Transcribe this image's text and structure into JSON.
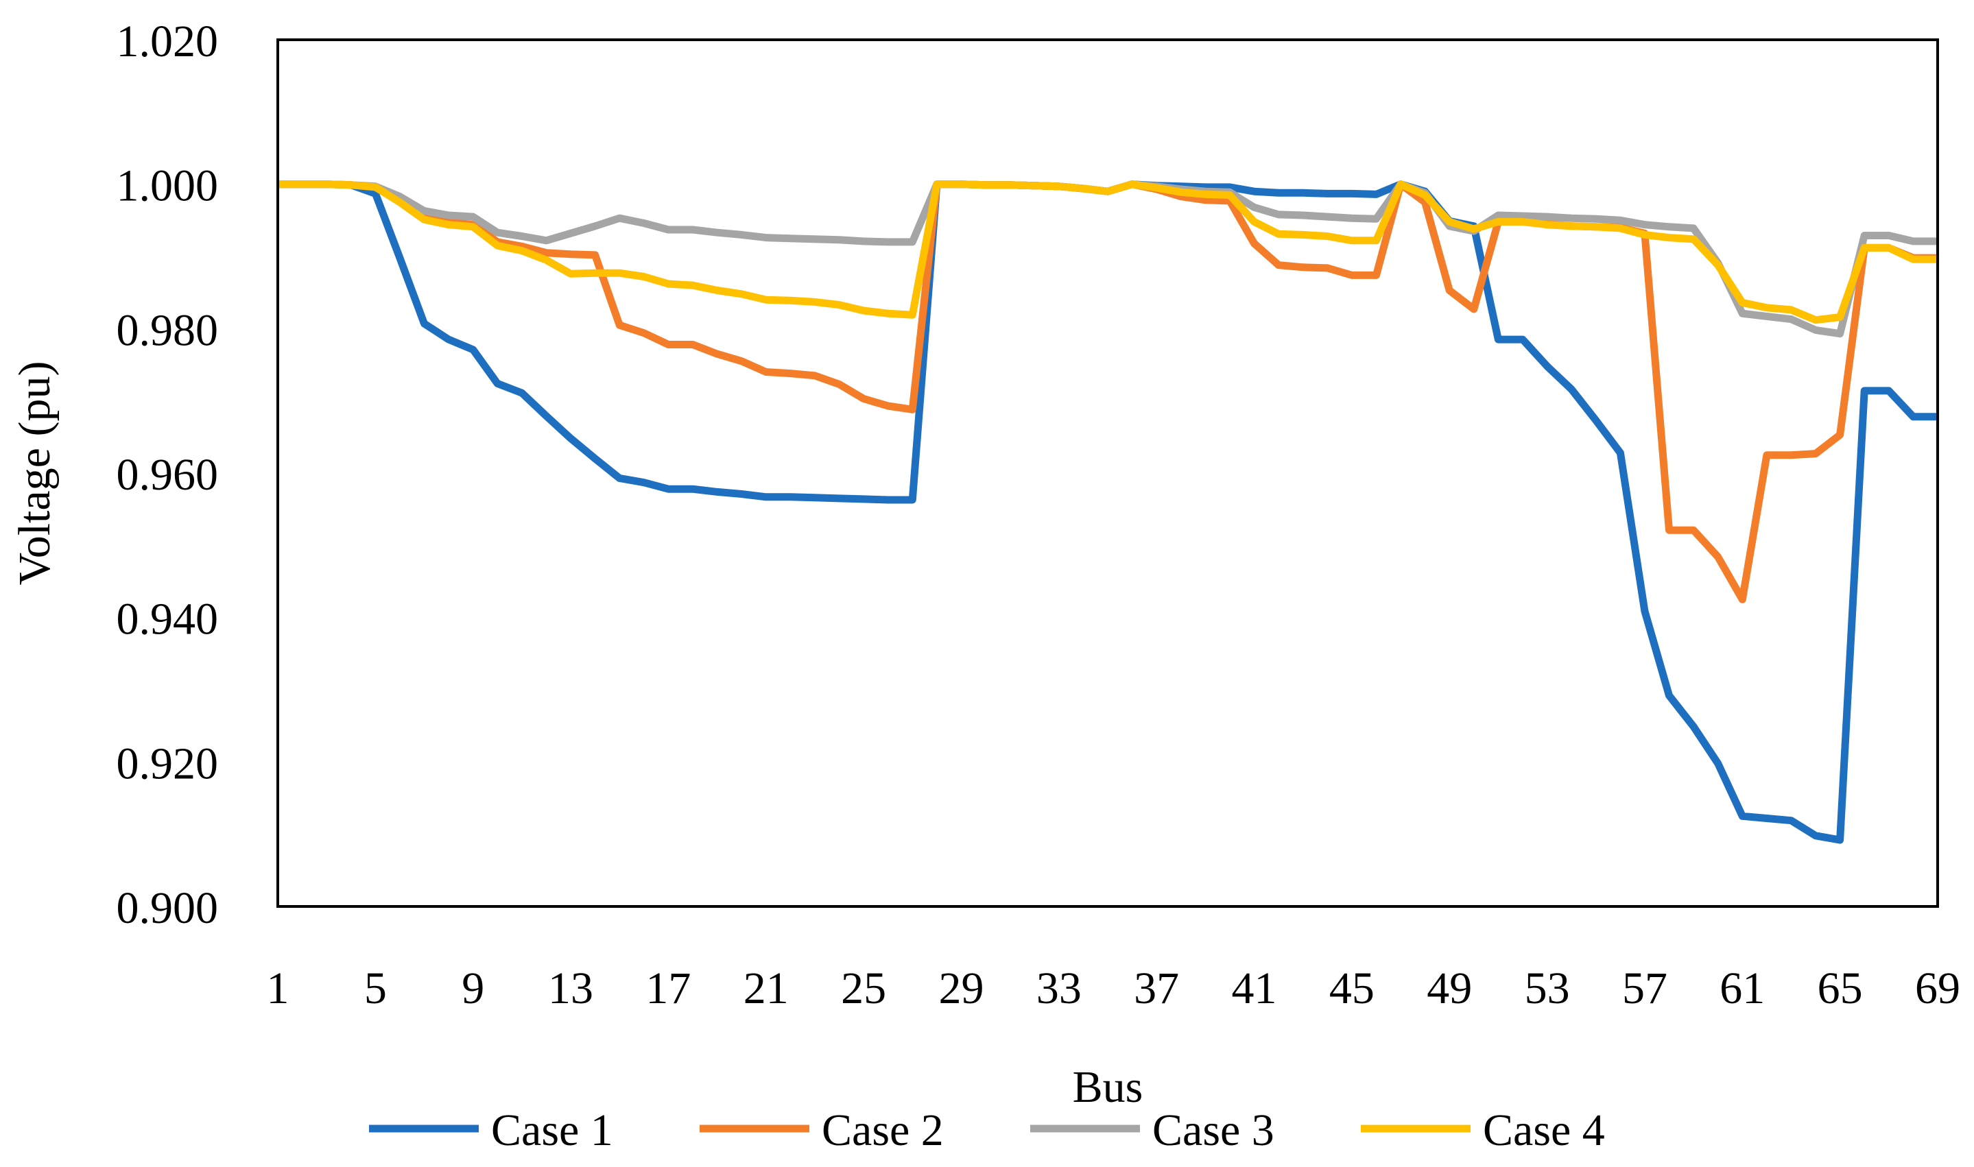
{
  "chart_data": {
    "type": "line",
    "title": "",
    "xlabel": "Bus",
    "ylabel": "Voltage (pu)",
    "x": [
      1,
      2,
      3,
      4,
      5,
      6,
      7,
      8,
      9,
      10,
      11,
      12,
      13,
      14,
      15,
      16,
      17,
      18,
      19,
      20,
      21,
      22,
      23,
      24,
      25,
      26,
      27,
      28,
      29,
      30,
      31,
      32,
      33,
      34,
      35,
      36,
      37,
      38,
      39,
      40,
      41,
      42,
      43,
      44,
      45,
      46,
      47,
      48,
      49,
      50,
      51,
      52,
      53,
      54,
      55,
      56,
      57,
      58,
      59,
      60,
      61,
      62,
      63,
      64,
      65,
      66,
      67,
      68,
      69
    ],
    "xlim": [
      1,
      69
    ],
    "ylim": [
      0.9,
      1.02
    ],
    "x_ticks": [
      "1",
      "5",
      "9",
      "13",
      "17",
      "21",
      "25",
      "29",
      "33",
      "37",
      "41",
      "45",
      "49",
      "53",
      "57",
      "61",
      "65",
      "69"
    ],
    "x_tick_values": [
      1,
      5,
      9,
      13,
      17,
      21,
      25,
      29,
      33,
      37,
      41,
      45,
      49,
      53,
      57,
      61,
      65,
      69
    ],
    "y_ticks": [
      "0.900",
      "0.920",
      "0.940",
      "0.960",
      "0.980",
      "1.000",
      "1.020"
    ],
    "y_tick_values": [
      0.9,
      0.92,
      0.94,
      0.96,
      0.98,
      1.0,
      1.02
    ],
    "grid": false,
    "legend_position": "bottom",
    "series": [
      {
        "name": "Case 1",
        "color": "#1f6fc1",
        "values": [
          1.0,
          1.0,
          1.0,
          0.9999,
          0.9987,
          0.9898,
          0.9807,
          0.9785,
          0.9771,
          0.9724,
          0.9711,
          0.9679,
          0.9648,
          0.962,
          0.9593,
          0.9587,
          0.9578,
          0.9578,
          0.9574,
          0.9571,
          0.9567,
          0.9567,
          0.9566,
          0.9565,
          0.9564,
          0.9563,
          0.9563,
          1.0,
          1.0,
          0.9999,
          0.9999,
          0.9998,
          0.9997,
          0.9994,
          0.999,
          1.0,
          0.9998,
          0.9997,
          0.9996,
          0.9996,
          0.999,
          0.9988,
          0.9988,
          0.9987,
          0.9987,
          0.9986,
          1.0,
          0.999,
          0.9949,
          0.9942,
          0.9785,
          0.9785,
          0.9748,
          0.9716,
          0.9673,
          0.9628,
          0.9409,
          0.9292,
          0.9249,
          0.9198,
          0.9125,
          0.9122,
          0.9119,
          0.9098,
          0.9092,
          0.9714,
          0.9714,
          0.9678,
          0.9678
        ]
      },
      {
        "name": "Case 2",
        "color": "#f47d2a",
        "values": [
          1.0,
          1.0,
          1.0,
          0.9999,
          0.9996,
          0.9978,
          0.9957,
          0.9948,
          0.9944,
          0.992,
          0.9914,
          0.9905,
          0.9903,
          0.9902,
          0.9805,
          0.9794,
          0.9778,
          0.9778,
          0.9765,
          0.9755,
          0.974,
          0.9738,
          0.9735,
          0.9723,
          0.9703,
          0.9693,
          0.9688,
          1.0,
          1.0,
          0.9999,
          0.9999,
          0.9998,
          0.9997,
          0.9994,
          0.999,
          1.0,
          0.9993,
          0.9983,
          0.9978,
          0.9977,
          0.9918,
          0.9888,
          0.9885,
          0.9884,
          0.9874,
          0.9874,
          1.0,
          0.9975,
          0.9853,
          0.9827,
          0.9948,
          0.9948,
          0.9945,
          0.9942,
          0.9941,
          0.994,
          0.9932,
          0.9521,
          0.9521,
          0.9484,
          0.9425,
          0.9625,
          0.9625,
          0.9627,
          0.9653,
          0.9912,
          0.9912,
          0.9898,
          0.9898
        ]
      },
      {
        "name": "Case 3",
        "color": "#a5a5a5",
        "values": [
          1.0,
          1.0,
          1.0,
          0.9999,
          0.9997,
          0.9983,
          0.9963,
          0.9957,
          0.9955,
          0.9933,
          0.9928,
          0.9922,
          0.9932,
          0.9942,
          0.9953,
          0.9946,
          0.9937,
          0.9937,
          0.9933,
          0.993,
          0.9926,
          0.9925,
          0.9924,
          0.9923,
          0.9921,
          0.992,
          0.992,
          1.0,
          1.0,
          0.9999,
          0.9999,
          0.9998,
          0.9997,
          0.9994,
          0.999,
          1.0,
          0.9997,
          0.9993,
          0.999,
          0.9989,
          0.9968,
          0.9958,
          0.9957,
          0.9955,
          0.9953,
          0.9952,
          1.0,
          0.9988,
          0.9942,
          0.9935,
          0.9957,
          0.9956,
          0.9955,
          0.9953,
          0.9952,
          0.995,
          0.9944,
          0.9941,
          0.9939,
          0.9891,
          0.9821,
          0.9817,
          0.9813,
          0.9798,
          0.9793,
          0.9929,
          0.9929,
          0.9921,
          0.9921
        ]
      },
      {
        "name": "Case 4",
        "color": "#ffc000",
        "values": [
          1.0,
          1.0,
          1.0,
          0.9999,
          0.9996,
          0.9975,
          0.9951,
          0.9944,
          0.9941,
          0.9915,
          0.9908,
          0.9895,
          0.9876,
          0.9877,
          0.9877,
          0.9872,
          0.9862,
          0.986,
          0.9853,
          0.9848,
          0.984,
          0.9839,
          0.9837,
          0.9833,
          0.9825,
          0.9821,
          0.9819,
          1.0,
          1.0,
          0.9999,
          0.9999,
          0.9998,
          0.9997,
          0.9994,
          0.999,
          1.0,
          0.9995,
          0.9989,
          0.9986,
          0.9985,
          0.9948,
          0.9931,
          0.993,
          0.9928,
          0.9922,
          0.9922,
          1.0,
          0.9985,
          0.9948,
          0.9938,
          0.9948,
          0.9948,
          0.9944,
          0.9942,
          0.9941,
          0.9939,
          0.993,
          0.9926,
          0.9924,
          0.9888,
          0.9836,
          0.9829,
          0.9826,
          0.9812,
          0.9816,
          0.9912,
          0.9912,
          0.9896,
          0.9896
        ]
      }
    ]
  }
}
